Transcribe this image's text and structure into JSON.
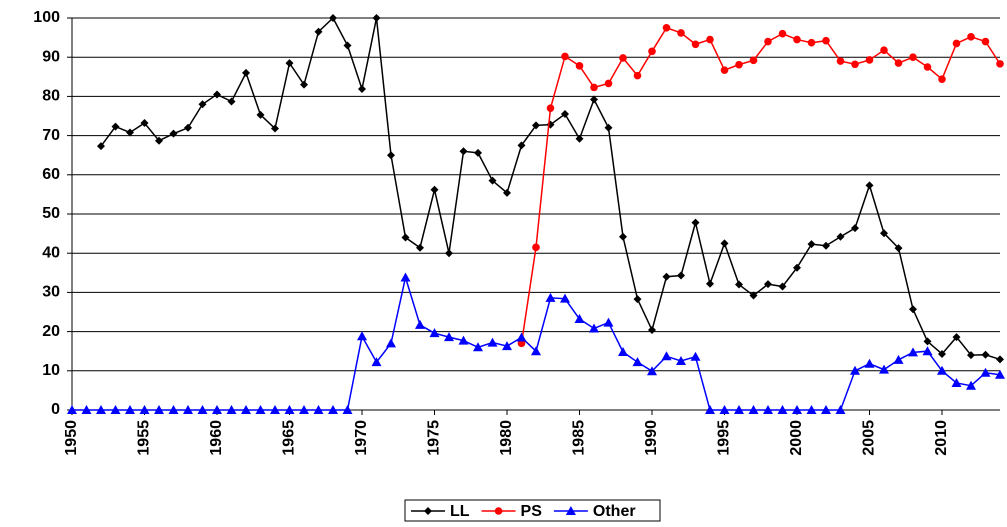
{
  "chart_data": {
    "type": "line",
    "x": [
      1950,
      1951,
      1952,
      1953,
      1954,
      1955,
      1956,
      1957,
      1958,
      1959,
      1960,
      1961,
      1962,
      1963,
      1964,
      1965,
      1966,
      1967,
      1968,
      1969,
      1970,
      1971,
      1972,
      1973,
      1974,
      1975,
      1976,
      1977,
      1978,
      1979,
      1980,
      1981,
      1982,
      1983,
      1984,
      1985,
      1986,
      1987,
      1988,
      1989,
      1990,
      1991,
      1992,
      1993,
      1994,
      1995,
      1996,
      1997,
      1998,
      1999,
      2000,
      2001,
      2002,
      2003,
      2004,
      2005,
      2006,
      2007,
      2008,
      2009,
      2010,
      2011,
      2012,
      2013,
      2014
    ],
    "series": [
      {
        "name": "LL",
        "color": "#000000",
        "marker": "diamond",
        "values": [
          null,
          null,
          67.3,
          72.3,
          70.8,
          73.2,
          68.7,
          70.5,
          72,
          78,
          80.5,
          78.7,
          86,
          75.3,
          71.8,
          88.5,
          83,
          96.5,
          100,
          93,
          81.9,
          100,
          65,
          44,
          41.4,
          56.2,
          40,
          66,
          65.6,
          58.5,
          55.4,
          67.5,
          72.6,
          72.8,
          75.5,
          69.2,
          79.2,
          72,
          44.2,
          28.3,
          20.4,
          34,
          34.3,
          47.8,
          32.2,
          42.5,
          32,
          29.2,
          32.1,
          31.5,
          36.3,
          42.3,
          41.9,
          44.2,
          46.4,
          57.3,
          45.1,
          41.3,
          25.7,
          17.5,
          14.3,
          18.6,
          14,
          14.1,
          12.9
        ]
      },
      {
        "name": "PS",
        "color": "#ff0000",
        "marker": "circle",
        "values": [
          null,
          null,
          null,
          null,
          null,
          null,
          null,
          null,
          null,
          null,
          null,
          null,
          null,
          null,
          null,
          null,
          null,
          null,
          null,
          null,
          null,
          null,
          null,
          null,
          null,
          null,
          null,
          null,
          null,
          null,
          null,
          17,
          41.5,
          77,
          90.2,
          87.8,
          82.3,
          83.3,
          89.8,
          85.3,
          91.5,
          97.5,
          96.2,
          93.3,
          94.5,
          86.7,
          88.1,
          89.2,
          94,
          96,
          94.5,
          93.7,
          94.2,
          89,
          88.2,
          89.3,
          91.8,
          88.5,
          90,
          87.5,
          84.4,
          93.5,
          95.2,
          94,
          88.3
        ]
      },
      {
        "name": "Other",
        "color": "#0000ff",
        "marker": "triangle",
        "values": [
          0,
          0,
          0,
          0,
          0,
          0,
          0,
          0,
          0,
          0,
          0,
          0,
          0,
          0,
          0,
          0,
          0,
          0,
          0,
          0,
          18.8,
          12.2,
          17,
          33.8,
          21.7,
          19.6,
          18.6,
          17.7,
          16,
          17.2,
          16.3,
          18.5,
          15,
          28.6,
          28.4,
          23.2,
          20.8,
          22.3,
          14.8,
          12.2,
          9.9,
          13.7,
          12.5,
          13.6,
          0,
          0,
          0,
          0,
          0,
          0,
          0,
          0,
          0,
          0,
          10,
          11.8,
          10.3,
          12.8,
          14.7,
          15,
          10,
          6.9,
          6.2,
          9.5,
          9
        ]
      }
    ],
    "xlim": [
      1950,
      2014
    ],
    "xticks": [
      1950,
      1955,
      1960,
      1965,
      1970,
      1975,
      1980,
      1985,
      1990,
      1995,
      2000,
      2005,
      2010
    ],
    "ylim": [
      0,
      100
    ],
    "yticks": [
      0,
      10,
      20,
      30,
      40,
      50,
      60,
      70,
      80,
      90,
      100
    ],
    "grid": true,
    "legend": "bottom"
  }
}
